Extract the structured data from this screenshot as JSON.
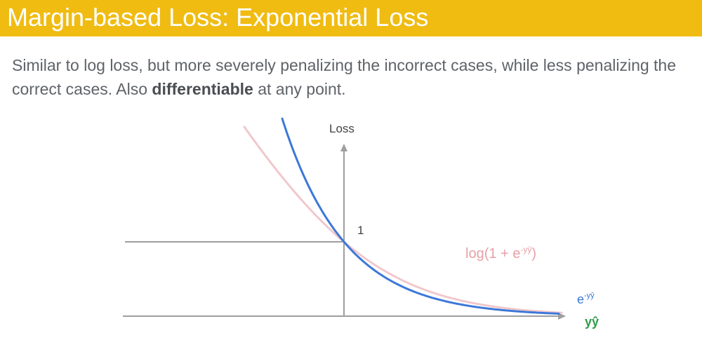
{
  "slide": {
    "title": "Margin-based Loss: Exponential Loss",
    "body_part1": "Similar to log loss, but more severely penalizing the incorrect cases, while less penalizing the correct cases. Also ",
    "body_bold": "differentiable",
    "body_part2": " at any point."
  },
  "diagram": {
    "y_axis_label": "Loss",
    "x_axis_label": "yŷ",
    "intercept_label": "1",
    "log_loss_label": "log(1 + e",
    "log_loss_label_sup": "-yŷ",
    "log_loss_label_close": ")",
    "exp_loss_label": "e",
    "exp_loss_label_sup": "-yŷ",
    "colors": {
      "title_bar": "#f0bc12",
      "exp_curve": "#3c78d8",
      "log_curve": "#f0c8cc",
      "log_label": "#e6a0a6",
      "axis": "#9e9e9e",
      "x_label": "#2e9e4a"
    }
  }
}
